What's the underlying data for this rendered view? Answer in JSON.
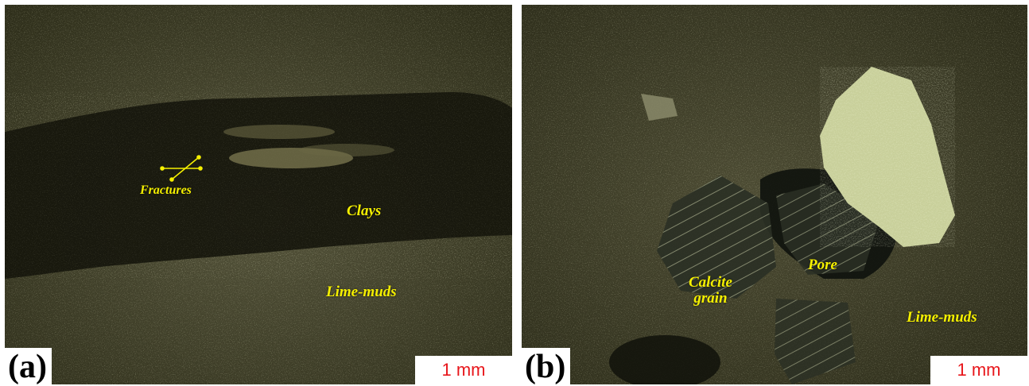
{
  "panels": [
    {
      "id": "a",
      "letter": "(a)",
      "scale_label": "1 mm",
      "labels": {
        "fractures": "Fractures",
        "clays": "Clays",
        "lime_muds": "Lime-muds"
      }
    },
    {
      "id": "b",
      "letter": "(b)",
      "scale_label": "1 mm",
      "labels": {
        "calcite_grain": "Calcite\ngrain",
        "pore": "Pore",
        "lime_muds": "Lime-muds"
      }
    }
  ],
  "colors": {
    "label_text": "#f5f000",
    "scale_text": "#e8161b",
    "matrix": "#4a4a2e",
    "clay_band": "#14140c",
    "calcite": "#c8cf9a"
  }
}
